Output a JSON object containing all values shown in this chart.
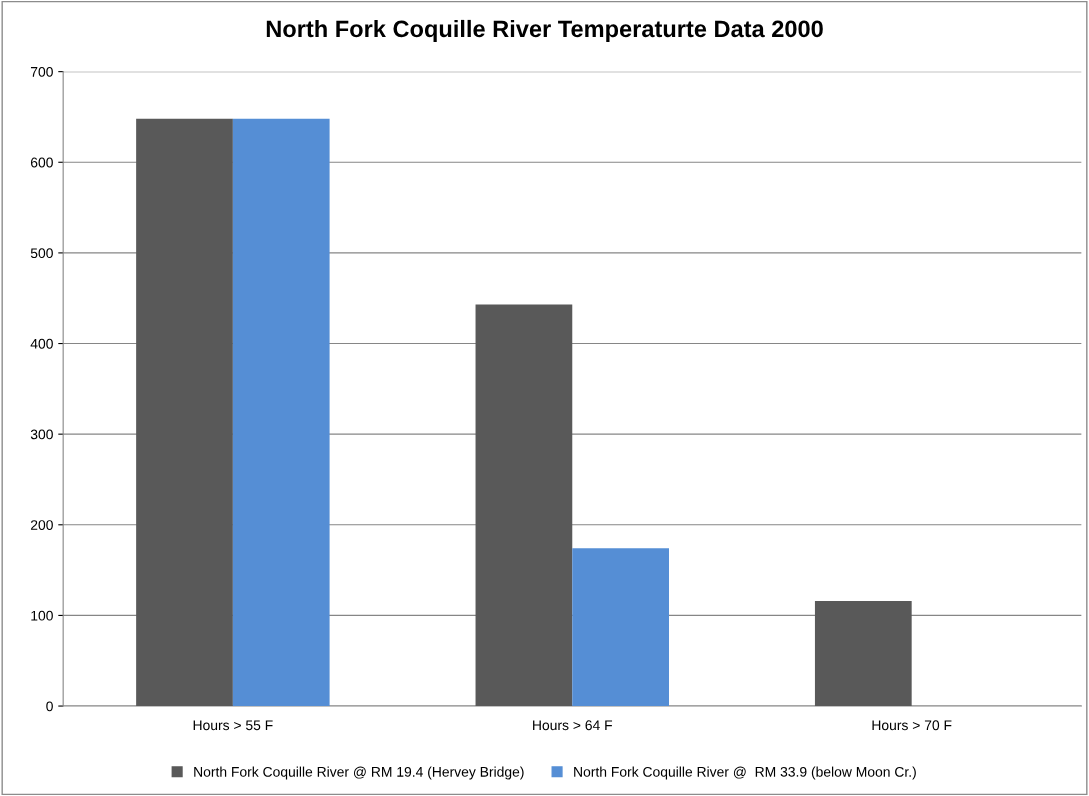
{
  "chart_data": {
    "type": "bar",
    "title": "North Fork Coquille River Temperaturte Data 2000",
    "categories": [
      "Hours > 55 F",
      "Hours > 64 F",
      "Hours > 70 F"
    ],
    "series": [
      {
        "name": "North Fork Coquille River @ RM 19.4 (Hervey Bridge)",
        "color": "#595959",
        "values": [
          648,
          443,
          116
        ]
      },
      {
        "name": "North Fork Coquille River @  RM 33.9 (below Moon Cr.)",
        "color": "#558ed5",
        "values": [
          648,
          174,
          0
        ]
      }
    ],
    "ylim": [
      0,
      700
    ],
    "yticks": [
      0,
      100,
      200,
      300,
      400,
      500,
      600,
      700
    ],
    "grid": "y",
    "legend": "bottom"
  }
}
